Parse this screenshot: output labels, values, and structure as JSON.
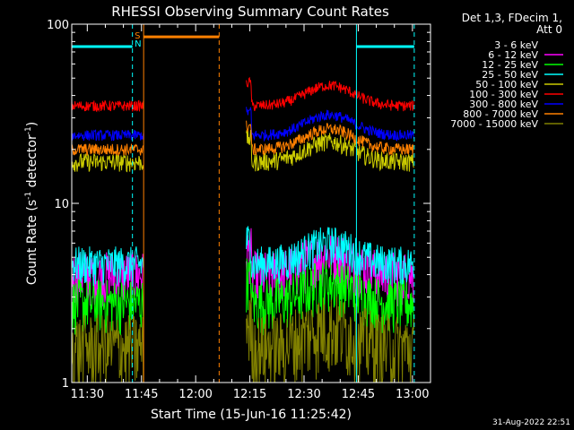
{
  "chart_data": {
    "type": "line",
    "title": "RHESSI Observing Summary Count Rates",
    "xlabel": "Start Time (15-Jun-16 11:25:42)",
    "ylabel_prefix": "Count Rate (s",
    "ylabel_sup1": "-1",
    "ylabel_mid": " detector",
    "ylabel_sup2": "-1",
    "ylabel_suffix": ")",
    "y_scale": "log",
    "ylim": [
      1,
      100
    ],
    "y_ticks": [
      {
        "value": 1,
        "label": "1"
      },
      {
        "value": 10,
        "label": "10"
      },
      {
        "value": 100,
        "label": "100"
      }
    ],
    "xlim_minutes": [
      25.7,
      65.0
    ],
    "x_ticks": [
      {
        "minute": 30,
        "label": "11:30"
      },
      {
        "minute": 45,
        "label": "11:45"
      },
      {
        "minute": 60,
        "label": "12:00"
      },
      {
        "minute": 75,
        "label": "12:15"
      },
      {
        "minute": 90,
        "label": "12:30"
      },
      {
        "minute": 105,
        "label": "12:45"
      },
      {
        "minute": 120,
        "label": "13:00"
      }
    ],
    "legend_header": [
      "Det 1,3, FDecim 1,",
      "Att 0"
    ],
    "series": [
      {
        "name": "3 - 6 keV",
        "color": "#000000",
        "base": 1.8,
        "jitter": 0.5,
        "gap_ok": true
      },
      {
        "name": "6 - 12 keV",
        "color": "#ff00ff",
        "base": 4.0,
        "jitter": 0.35
      },
      {
        "name": "12 - 25 keV",
        "color": "#00ff00",
        "base": 2.8,
        "jitter": 0.35
      },
      {
        "name": "25 - 50 keV",
        "color": "#00ffff",
        "base": 4.6,
        "jitter": 0.25
      },
      {
        "name": "50 - 100 keV",
        "color": "#cccc00",
        "base": 17,
        "jitter": 0.12
      },
      {
        "name": "100 - 300 keV",
        "color": "#ff0000",
        "base": 35,
        "jitter": 0.07
      },
      {
        "name": "300 - 800 keV",
        "color": "#0000ff",
        "base": 24,
        "jitter": 0.07
      },
      {
        "name": "800 - 7000 keV",
        "color": "#ff8000",
        "base": 20,
        "jitter": 0.08
      },
      {
        "name": "7000 - 15000 keV",
        "color": "#808000",
        "base": 1.6,
        "jitter": 0.5
      }
    ],
    "data_segments": [
      {
        "start": 25.7,
        "end": 45.6
      },
      {
        "start": 74.0,
        "end": 120.5
      }
    ],
    "saa_flag": {
      "label_s": "S",
      "label_n": "N",
      "color": "#ff8000",
      "start": 45.6,
      "end": 66.5,
      "value": 85
    },
    "night_flags": [
      {
        "start": 25.7,
        "end": 42.5,
        "value": 75,
        "color": "#00ffff"
      },
      {
        "start": 104.5,
        "end": 120.5,
        "value": 75,
        "color": "#00ffff"
      }
    ],
    "event_lines": [
      {
        "minute": 42.5,
        "color": "#00ffff",
        "style": "dashed"
      },
      {
        "minute": 45.6,
        "color": "#ff8000",
        "style": "solid"
      },
      {
        "minute": 66.5,
        "color": "#ff8000",
        "style": "dashed"
      },
      {
        "minute": 104.5,
        "color": "#00ffff",
        "style": "solid"
      },
      {
        "minute": 120.5,
        "color": "#00ffff",
        "style": "dashed"
      }
    ],
    "bump": {
      "center": 97,
      "width": 9,
      "amplitude": 0.3
    }
  },
  "footer": {
    "date_stamp": "31-Aug-2022 22:51"
  }
}
